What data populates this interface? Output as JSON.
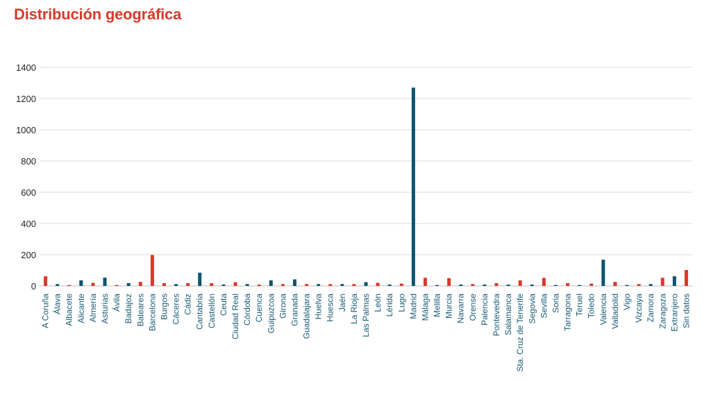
{
  "colors": {
    "title": "#d93a2b",
    "red": "#d93a2b",
    "blue": "#0d5470",
    "label": "#1a5a74"
  },
  "chart_data": {
    "type": "bar",
    "title": "Distribución geográfica",
    "xlabel": "",
    "ylabel": "",
    "ylim": [
      0,
      1400
    ],
    "yticks": [
      0,
      200,
      400,
      600,
      800,
      1000,
      1200,
      1400
    ],
    "grid": true,
    "categories": [
      "A Coruña",
      "Álava",
      "Albacete",
      "Alicante",
      "Almería",
      "Asturias",
      "Ávila",
      "Badajoz",
      "Baleares",
      "Barcelona",
      "Burgos",
      "Cáceres",
      "Cádiz",
      "Cantabria",
      "Castellón",
      "Ceuta",
      "Ciudad Real",
      "Córdoba",
      "Cuenca",
      "Guipuzcoa",
      "Girona",
      "Granada",
      "Guadalajara",
      "Huelva",
      "Huesca",
      "Jaén",
      "La Rioja",
      "Las Palmas",
      "León",
      "Lérida",
      "Lugo",
      "Madrid",
      "Málaga",
      "Melilla",
      "Murcia",
      "Navarra",
      "Orense",
      "Palencia",
      "Pontevedra",
      "Salamanca",
      "Sta. Cruz de Tenerife",
      "Segovia",
      "Sevilla",
      "Soria",
      "Tarragona",
      "Teruel",
      "Toledo",
      "Valencia",
      "Valladolid",
      "Vigo",
      "Vizcaya",
      "Zamora",
      "Zaragoza",
      "Extranjero",
      "Sin datos"
    ],
    "values": [
      62,
      12,
      6,
      36,
      20,
      53,
      6,
      18,
      26,
      198,
      18,
      12,
      18,
      85,
      18,
      9,
      24,
      12,
      9,
      36,
      12,
      42,
      12,
      12,
      12,
      12,
      12,
      24,
      20,
      9,
      15,
      1270,
      52,
      6,
      50,
      9,
      12,
      9,
      18,
      9,
      36,
      9,
      52,
      6,
      18,
      6,
      15,
      168,
      26,
      6,
      12,
      12,
      52,
      62,
      102
    ],
    "bar_colors": [
      "#d93a2b",
      "#0d5470",
      "#d93a2b",
      "#0d5470",
      "#d93a2b",
      "#0d5470",
      "#d93a2b",
      "#0d5470",
      "#d93a2b",
      "#d93a2b",
      "#d93a2b",
      "#0d5470",
      "#d93a2b",
      "#0d5470",
      "#d93a2b",
      "#0d5470",
      "#d93a2b",
      "#0d5470",
      "#d93a2b",
      "#0d5470",
      "#d93a2b",
      "#0d5470",
      "#d93a2b",
      "#0d5470",
      "#d93a2b",
      "#0d5470",
      "#d93a2b",
      "#0d5470",
      "#d93a2b",
      "#0d5470",
      "#d93a2b",
      "#0d5470",
      "#d93a2b",
      "#0d5470",
      "#d93a2b",
      "#0d5470",
      "#d93a2b",
      "#0d5470",
      "#d93a2b",
      "#0d5470",
      "#d93a2b",
      "#0d5470",
      "#d93a2b",
      "#0d5470",
      "#d93a2b",
      "#0d5470",
      "#d93a2b",
      "#0d5470",
      "#d93a2b",
      "#0d5470",
      "#d93a2b",
      "#0d5470",
      "#d93a2b",
      "#0d5470",
      "#d93a2b"
    ]
  }
}
